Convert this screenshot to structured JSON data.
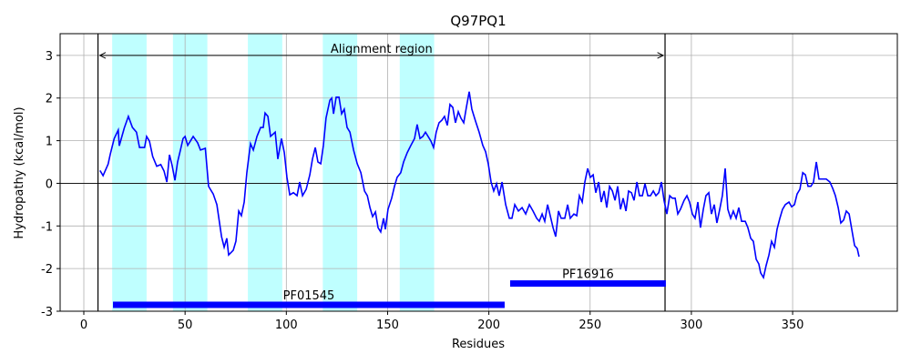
{
  "chart_data": {
    "type": "line",
    "title": "Q97PQ1",
    "xlabel": "Residues",
    "ylabel": "Hydropathy (kcal/mol)",
    "xlim": [
      -11.7,
      401.7
    ],
    "ylim": [
      -3,
      3.51
    ],
    "xticks": [
      0,
      50,
      100,
      150,
      200,
      250,
      300,
      350
    ],
    "yticks": [
      -3,
      -2,
      -1,
      0,
      1,
      2,
      3
    ],
    "grid": true,
    "hline": 0,
    "x": [
      8,
      9.5,
      12,
      13,
      15,
      17,
      17.5,
      20,
      22,
      24,
      26,
      27.5,
      30,
      31,
      32.4,
      34,
      36,
      38,
      39.6,
      41,
      42.3,
      43.6,
      45,
      46.3,
      47.7,
      49,
      50,
      51.3,
      52.6,
      54,
      56.2,
      57.6,
      60,
      61.6,
      63.9,
      65.7,
      68,
      69.3,
      70.6,
      71.5,
      73.8,
      75.1,
      76.5,
      77.8,
      79.2,
      80.5,
      82.3,
      83.7,
      85.5,
      87.3,
      88.6,
      89.5,
      90.9,
      92.2,
      94.5,
      95.8,
      97.6,
      99,
      100.3,
      101.7,
      103.5,
      105.3,
      106.6,
      108,
      109.8,
      111.6,
      112.9,
      114.3,
      115.6,
      117,
      118.3,
      119.6,
      121.5,
      122.4,
      123.3,
      124.6,
      126,
      127.3,
      128.6,
      130,
      131.4,
      133.2,
      135,
      136.8,
      138.6,
      140,
      141.3,
      142.6,
      144,
      145.3,
      146.6,
      148,
      148.9,
      150.2,
      152,
      153.4,
      154.7,
      156.5,
      157.9,
      159.7,
      161.5,
      163.3,
      164.6,
      166,
      167.4,
      168.7,
      170,
      171.4,
      172.7,
      174,
      175.4,
      176.8,
      178.1,
      179.5,
      180.8,
      182.2,
      183.5,
      184.9,
      186.2,
      187.6,
      188.9,
      190.3,
      191.6,
      193.4,
      195.2,
      197,
      198.4,
      199.7,
      201.1,
      202.4,
      203.8,
      205.1,
      206.5,
      208.3,
      210.1,
      211.4,
      212.8,
      214.6,
      216.4,
      218.2,
      220,
      221.8,
      223.6,
      224.9,
      226.3,
      227.6,
      229,
      230.4,
      231.7,
      233,
      234.4,
      235.7,
      237.5,
      238.9,
      240.2,
      242,
      243.4,
      244.7,
      246.1,
      247.4,
      248.8,
      250.1,
      251.5,
      252.8,
      254.2,
      255.5,
      256.9,
      258.2,
      259.6,
      261,
      262.3,
      263.6,
      265,
      266.3,
      267.7,
      269,
      270.4,
      271.7,
      273.1,
      274.4,
      275.8,
      277.1,
      278.5,
      279.8,
      281.2,
      282.5,
      283.9,
      285.2,
      286.5,
      287.9,
      289.3,
      290.6,
      292,
      293.3,
      294.6,
      296.4,
      297.8,
      299.1,
      300.5,
      301.8,
      303.2,
      304.5,
      305.9,
      307.2,
      308.6,
      309.9,
      311.3,
      312.6,
      314,
      315.3,
      316.7,
      318,
      319.4,
      320.7,
      322.1,
      323.4,
      324.8,
      326.6,
      327.9,
      329.3,
      330.6,
      332,
      333.3,
      334.2,
      335.6,
      336.9,
      338.3,
      339.6,
      341,
      342.3,
      343.7,
      345,
      346.4,
      348.2,
      349.5,
      350.9,
      352.2,
      353.6,
      355,
      356.3,
      357.6,
      359,
      360.3,
      361.7,
      363,
      364.8,
      366.6,
      368.4,
      369.8,
      371.1,
      372.5,
      373.8,
      375.2,
      376.5,
      377.9,
      379.2,
      380.6,
      381.9,
      382.8
    ],
    "series": [
      {
        "color": "#0000ff",
        "values": [
          0.3,
          0.18,
          0.45,
          0.67,
          1.05,
          1.25,
          0.88,
          1.3,
          1.57,
          1.31,
          1.2,
          0.84,
          0.84,
          1.1,
          0.99,
          0.63,
          0.4,
          0.44,
          0.29,
          0.03,
          0.67,
          0.42,
          0.07,
          0.5,
          0.78,
          1.05,
          1.1,
          0.89,
          0.99,
          1.1,
          0.95,
          0.78,
          0.82,
          -0.07,
          -0.25,
          -0.5,
          -1.25,
          -1.5,
          -1.29,
          -1.68,
          -1.57,
          -1.36,
          -0.65,
          -0.76,
          -0.44,
          0.25,
          0.93,
          0.78,
          1.1,
          1.31,
          1.31,
          1.65,
          1.57,
          1.1,
          1.2,
          0.57,
          1.05,
          0.72,
          0.14,
          -0.27,
          -0.22,
          -0.29,
          0.03,
          -0.29,
          -0.14,
          0.2,
          0.57,
          0.84,
          0.5,
          0.46,
          0.89,
          1.53,
          1.95,
          2.0,
          1.63,
          2.02,
          2.02,
          1.63,
          1.74,
          1.31,
          1.2,
          0.78,
          0.46,
          0.25,
          -0.18,
          -0.29,
          -0.57,
          -0.78,
          -0.67,
          -1.04,
          -1.14,
          -0.82,
          -1.08,
          -0.61,
          -0.35,
          -0.07,
          0.14,
          0.25,
          0.5,
          0.72,
          0.89,
          1.05,
          1.38,
          1.05,
          1.1,
          1.2,
          1.1,
          0.99,
          0.84,
          1.2,
          1.42,
          1.48,
          1.57,
          1.36,
          1.85,
          1.78,
          1.42,
          1.68,
          1.53,
          1.42,
          1.78,
          2.15,
          1.74,
          1.46,
          1.2,
          0.89,
          0.74,
          0.46,
          0.03,
          -0.18,
          -0.01,
          -0.29,
          0.03,
          -0.5,
          -0.82,
          -0.82,
          -0.5,
          -0.65,
          -0.57,
          -0.72,
          -0.5,
          -0.65,
          -0.82,
          -0.89,
          -0.72,
          -0.89,
          -0.5,
          -0.78,
          -1.04,
          -1.25,
          -0.65,
          -0.82,
          -0.82,
          -0.5,
          -0.82,
          -0.72,
          -0.76,
          -0.29,
          -0.44,
          0.03,
          0.35,
          0.14,
          0.2,
          -0.22,
          0.03,
          -0.44,
          -0.18,
          -0.57,
          -0.07,
          -0.18,
          -0.4,
          -0.07,
          -0.61,
          -0.35,
          -0.65,
          -0.18,
          -0.22,
          -0.4,
          0.03,
          -0.29,
          -0.29,
          -0.01,
          -0.29,
          -0.29,
          -0.18,
          -0.29,
          -0.22,
          0.03,
          -0.4,
          -0.72,
          -0.29,
          -0.35,
          -0.35,
          -0.72,
          -0.61,
          -0.4,
          -0.29,
          -0.44,
          -0.72,
          -0.82,
          -0.44,
          -1.04,
          -0.61,
          -0.29,
          -0.22,
          -0.72,
          -0.5,
          -0.93,
          -0.61,
          -0.29,
          0.35,
          -0.61,
          -0.82,
          -0.65,
          -0.82,
          -0.57,
          -0.89,
          -0.89,
          -1.04,
          -1.29,
          -1.36,
          -1.78,
          -1.89,
          -2.1,
          -2.21,
          -1.93,
          -1.68,
          -1.36,
          -1.5,
          -1.08,
          -0.82,
          -0.61,
          -0.5,
          -0.44,
          -0.55,
          -0.5,
          -0.25,
          -0.14,
          0.25,
          0.2,
          -0.07,
          -0.07,
          0.03,
          0.5,
          0.1,
          0.1,
          0.1,
          0.03,
          -0.12,
          -0.29,
          -0.57,
          -0.93,
          -0.86,
          -0.65,
          -0.72,
          -1.08,
          -1.46,
          -1.53,
          -1.72
        ]
      }
    ],
    "shaded_regions": [
      [
        14,
        31
      ],
      [
        44,
        61
      ],
      [
        81,
        98
      ],
      [
        118,
        135
      ],
      [
        156,
        173
      ]
    ],
    "shade_color": "#bfffff",
    "alignment_region": {
      "text": "Alignment region",
      "start": 7,
      "end": 287,
      "y": 3
    },
    "domains": [
      {
        "name": "PF01545",
        "start": 14.4,
        "end": 207.8,
        "y": -2.85,
        "color": "#0000ff"
      },
      {
        "name": "PF16916",
        "start": 210.5,
        "end": 287.4,
        "y": -2.35,
        "color": "#0000ff"
      }
    ]
  }
}
